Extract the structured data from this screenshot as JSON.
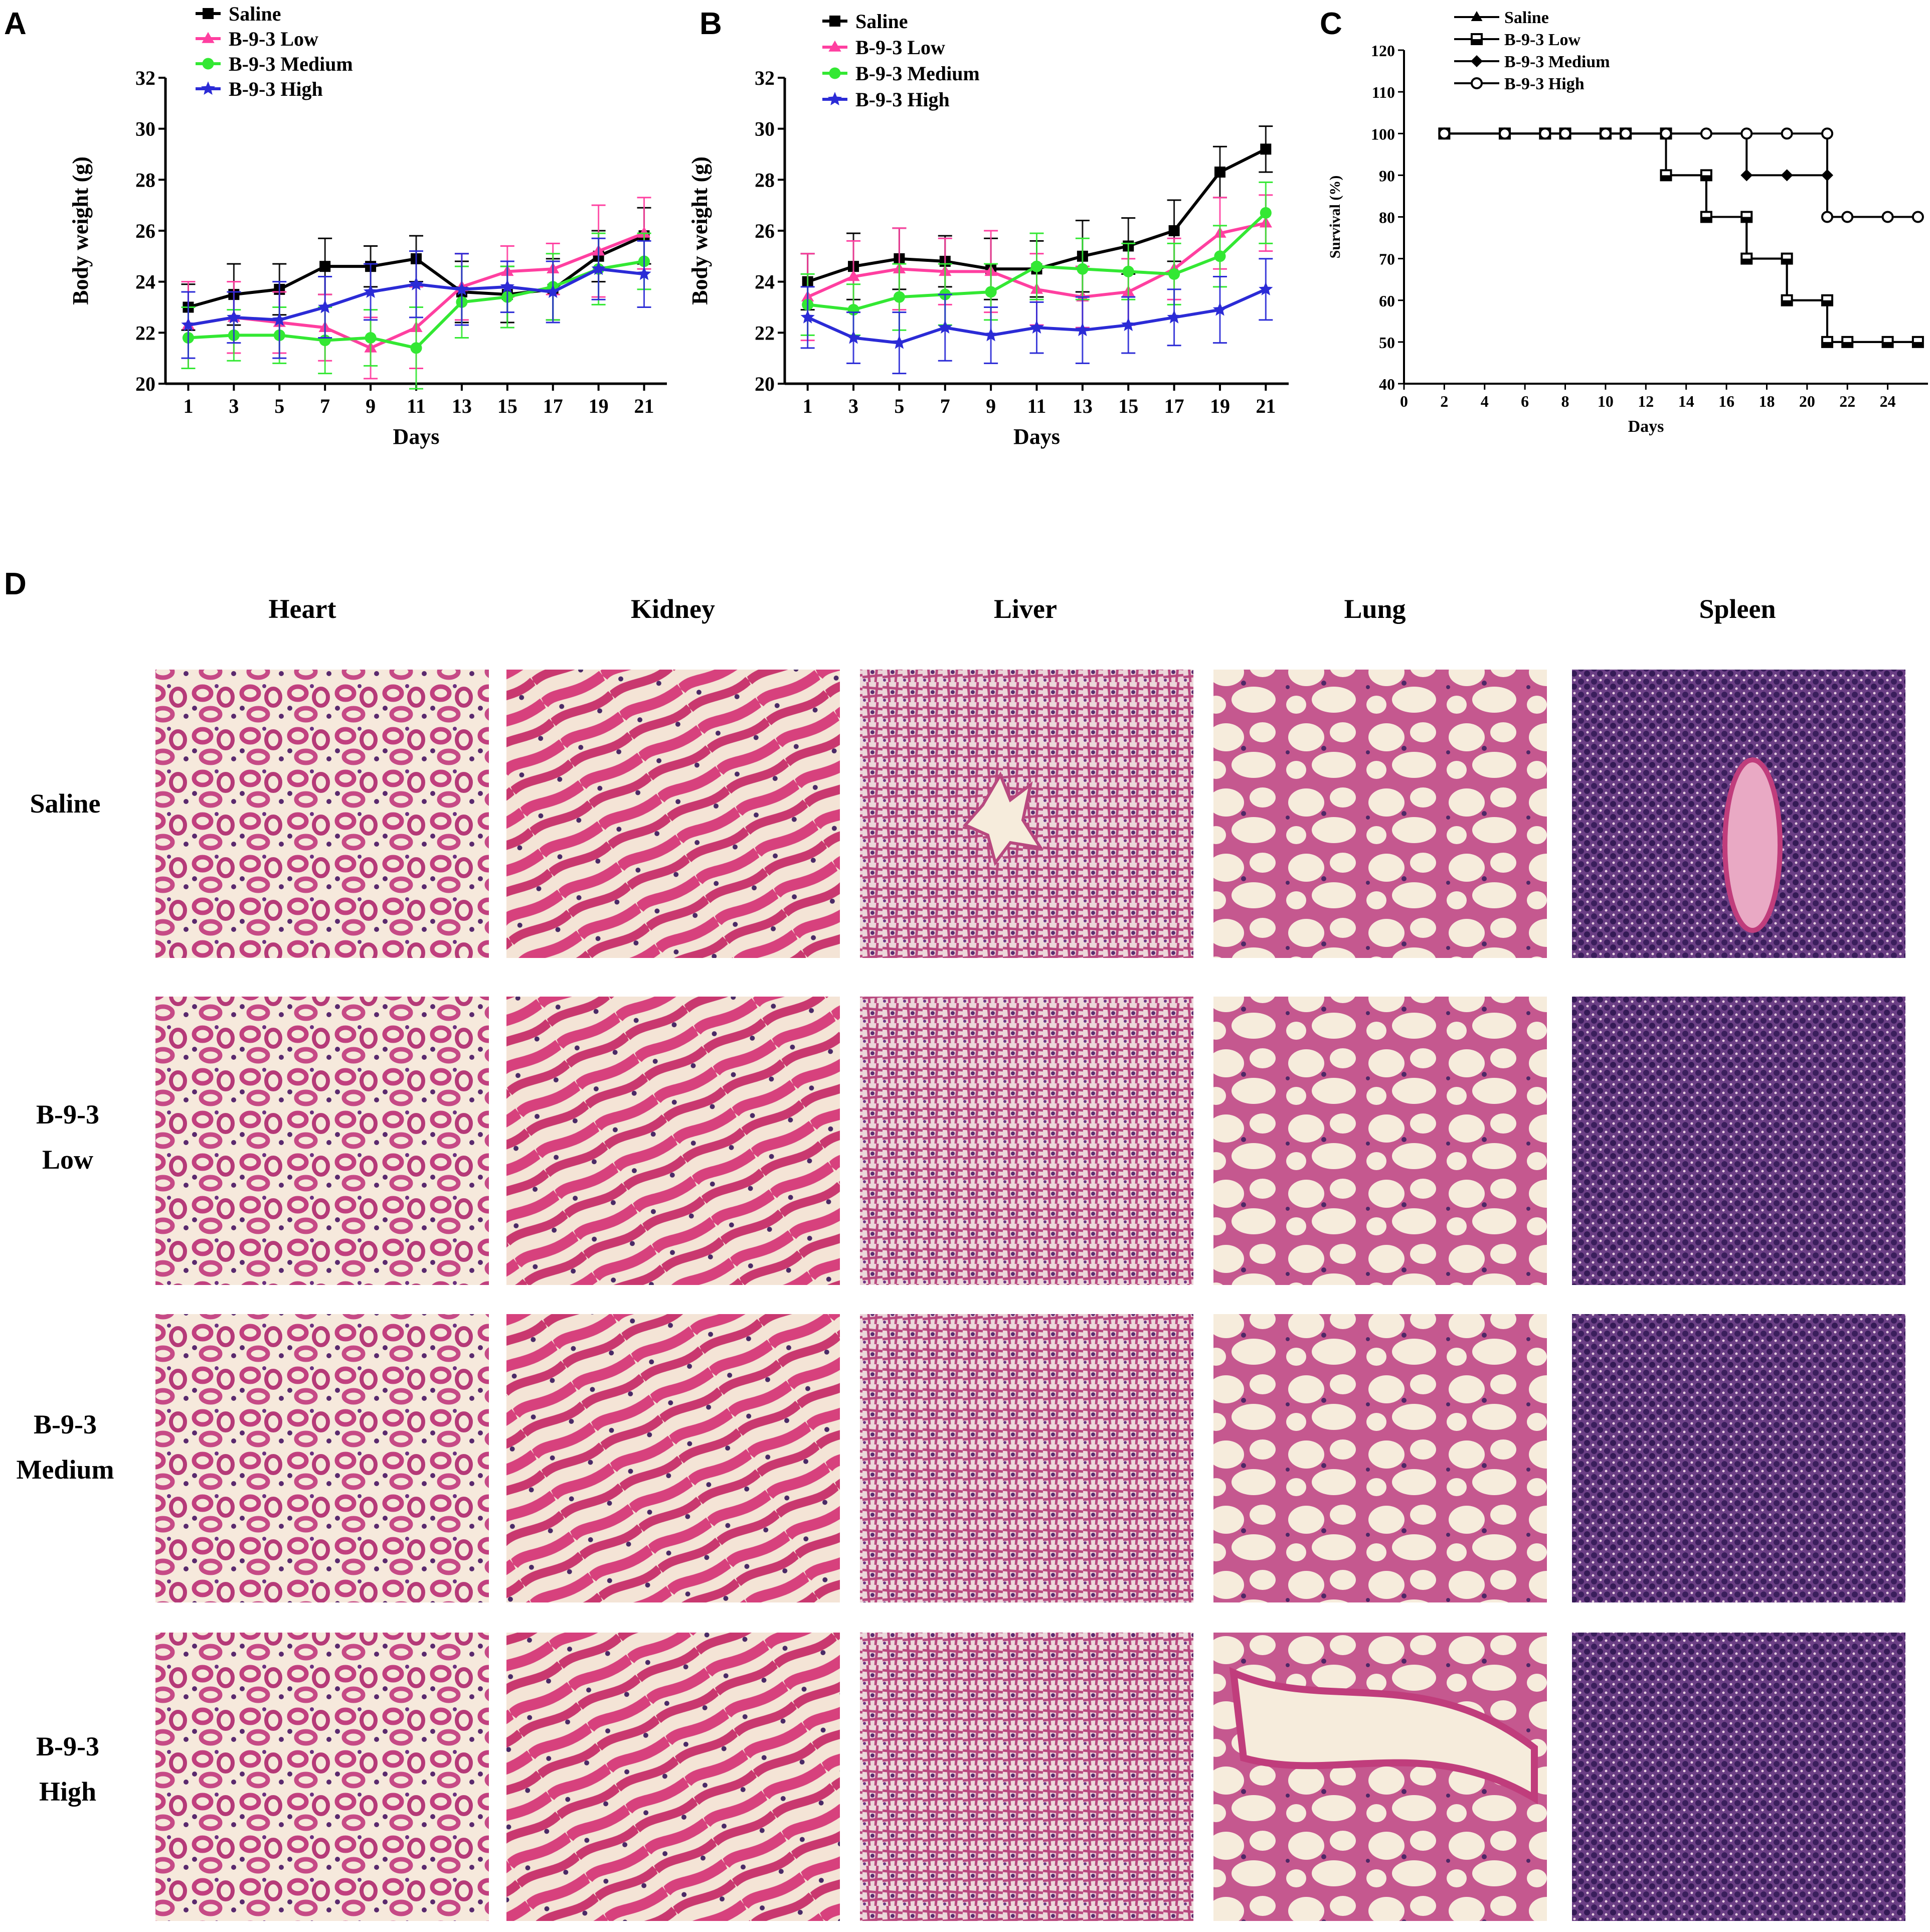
{
  "panels": {
    "A": "A",
    "B": "B",
    "C": "C",
    "D": "D"
  },
  "chart_data": [
    {
      "id": "A",
      "type": "line",
      "xlabel": "Days",
      "ylabel": "Body weight (g)",
      "xlim": [
        0,
        22
      ],
      "ylim": [
        20,
        32
      ],
      "xticks": [
        1,
        3,
        5,
        7,
        9,
        11,
        13,
        15,
        17,
        19,
        21
      ],
      "yticks": [
        20,
        22,
        24,
        26,
        28,
        30,
        32
      ],
      "x": [
        1,
        3,
        5,
        7,
        9,
        11,
        13,
        15,
        17,
        19,
        21
      ],
      "series": [
        {
          "name": "Saline",
          "color": "#000000",
          "marker": "square",
          "values": [
            23.0,
            23.5,
            23.7,
            24.6,
            24.6,
            24.9,
            23.6,
            23.5,
            23.7,
            25.0,
            25.8
          ],
          "errors": [
            0.9,
            1.2,
            1.0,
            1.1,
            0.8,
            0.9,
            1.2,
            1.1,
            1.2,
            1.0,
            1.1
          ]
        },
        {
          "name": "B-9-3 Low",
          "color": "#ff3fa0",
          "marker": "triangle",
          "values": [
            22.3,
            22.6,
            22.4,
            22.2,
            21.4,
            22.2,
            23.8,
            24.4,
            24.5,
            25.2,
            25.9
          ],
          "errors": [
            1.7,
            1.4,
            1.2,
            1.3,
            1.2,
            1.6,
            1.3,
            1.0,
            1.0,
            1.8,
            1.4
          ]
        },
        {
          "name": "B-9-3 Medium",
          "color": "#33e833",
          "marker": "circle",
          "values": [
            21.8,
            21.9,
            21.9,
            21.7,
            21.8,
            21.4,
            23.2,
            23.4,
            23.8,
            24.5,
            24.8
          ],
          "errors": [
            1.2,
            1.0,
            1.1,
            1.3,
            1.1,
            1.6,
            1.4,
            1.2,
            1.3,
            1.4,
            1.1
          ]
        },
        {
          "name": "B-9-3 High",
          "color": "#2b2bd6",
          "marker": "star",
          "values": [
            22.3,
            22.6,
            22.5,
            23.0,
            23.6,
            23.9,
            23.7,
            23.8,
            23.6,
            24.5,
            24.3
          ],
          "errors": [
            1.3,
            1.0,
            1.5,
            1.2,
            1.1,
            1.3,
            1.4,
            1.0,
            1.2,
            1.2,
            1.3
          ]
        }
      ]
    },
    {
      "id": "B",
      "type": "line",
      "xlabel": "Days",
      "ylabel": "Body weight (g)",
      "xlim": [
        0,
        22
      ],
      "ylim": [
        20,
        32
      ],
      "xticks": [
        1,
        3,
        5,
        7,
        9,
        11,
        13,
        15,
        17,
        19,
        21
      ],
      "yticks": [
        20,
        22,
        24,
        26,
        28,
        30,
        32
      ],
      "x": [
        1,
        3,
        5,
        7,
        9,
        11,
        13,
        15,
        17,
        19,
        21
      ],
      "series": [
        {
          "name": "Saline",
          "color": "#000000",
          "marker": "square",
          "values": [
            24.0,
            24.6,
            24.9,
            24.8,
            24.5,
            24.5,
            25.0,
            25.4,
            26.0,
            28.3,
            29.2
          ],
          "errors": [
            1.1,
            1.3,
            1.2,
            1.0,
            1.2,
            1.1,
            1.4,
            1.1,
            1.2,
            1.0,
            0.9
          ]
        },
        {
          "name": "B-9-3 Low",
          "color": "#ff3fa0",
          "marker": "triangle",
          "values": [
            23.4,
            24.2,
            24.5,
            24.4,
            24.4,
            23.7,
            23.4,
            23.6,
            24.5,
            25.9,
            26.3
          ],
          "errors": [
            1.7,
            1.4,
            1.6,
            1.3,
            1.6,
            1.4,
            1.2,
            1.3,
            1.2,
            1.4,
            1.1
          ]
        },
        {
          "name": "B-9-3 Medium",
          "color": "#33e833",
          "marker": "circle",
          "values": [
            23.1,
            22.9,
            23.4,
            23.5,
            23.6,
            24.6,
            24.5,
            24.4,
            24.3,
            25.0,
            26.7
          ],
          "errors": [
            1.2,
            1.0,
            1.3,
            1.2,
            1.1,
            1.3,
            1.2,
            1.1,
            1.2,
            1.2,
            1.2
          ]
        },
        {
          "name": "B-9-3 High",
          "color": "#2b2bd6",
          "marker": "star",
          "values": [
            22.6,
            21.8,
            21.6,
            22.2,
            21.9,
            22.2,
            22.1,
            22.3,
            22.6,
            22.9,
            23.7
          ],
          "errors": [
            1.2,
            1.0,
            1.2,
            1.3,
            1.1,
            1.0,
            1.3,
            1.1,
            1.1,
            1.3,
            1.2
          ]
        }
      ]
    },
    {
      "id": "C",
      "type": "line",
      "step": true,
      "xlabel": "Days",
      "ylabel": "Survival (%)",
      "xlim": [
        0,
        26
      ],
      "ylim": [
        40,
        120
      ],
      "xticks": [
        0,
        2,
        4,
        6,
        8,
        10,
        12,
        14,
        16,
        18,
        20,
        22,
        24
      ],
      "yticks": [
        40,
        50,
        60,
        70,
        80,
        90,
        100,
        110,
        120
      ],
      "series": [
        {
          "name": "Saline",
          "color": "#000000",
          "marker": "triangle",
          "points": [
            [
              2,
              100
            ],
            [
              5,
              100
            ],
            [
              7,
              100
            ],
            [
              8,
              100
            ],
            [
              10,
              100
            ],
            [
              11,
              100
            ],
            [
              13,
              100
            ],
            [
              13,
              90
            ],
            [
              15,
              90
            ],
            [
              15,
              80
            ],
            [
              17,
              80
            ],
            [
              17,
              70
            ],
            [
              19,
              70
            ],
            [
              19,
              60
            ],
            [
              21,
              60
            ],
            [
              21,
              50
            ],
            [
              22,
              50
            ],
            [
              24,
              50
            ],
            [
              25.5,
              50
            ]
          ]
        },
        {
          "name": "B-9-3 Low",
          "color": "#000000",
          "marker": "halfsquare",
          "points": [
            [
              2,
              100
            ],
            [
              5,
              100
            ],
            [
              7,
              100
            ],
            [
              8,
              100
            ],
            [
              10,
              100
            ],
            [
              11,
              100
            ],
            [
              13,
              100
            ],
            [
              13,
              90
            ],
            [
              15,
              90
            ],
            [
              15,
              80
            ],
            [
              17,
              80
            ],
            [
              17,
              70
            ],
            [
              19,
              70
            ],
            [
              19,
              60
            ],
            [
              21,
              60
            ],
            [
              21,
              50
            ],
            [
              22,
              50
            ],
            [
              24,
              50
            ],
            [
              25.5,
              50
            ]
          ]
        },
        {
          "name": "B-9-3 Medium",
          "color": "#000000",
          "marker": "diamond",
          "points": [
            [
              2,
              100
            ],
            [
              5,
              100
            ],
            [
              7,
              100
            ],
            [
              8,
              100
            ],
            [
              10,
              100
            ],
            [
              11,
              100
            ],
            [
              13,
              100
            ],
            [
              15,
              100
            ],
            [
              17,
              100
            ],
            [
              17,
              90
            ],
            [
              19,
              90
            ],
            [
              21,
              90
            ],
            [
              21,
              80
            ],
            [
              22,
              80
            ],
            [
              24,
              80
            ],
            [
              25.5,
              80
            ]
          ]
        },
        {
          "name": "B-9-3 High",
          "color": "#000000",
          "marker": "open-circle",
          "points": [
            [
              2,
              100
            ],
            [
              5,
              100
            ],
            [
              7,
              100
            ],
            [
              8,
              100
            ],
            [
              10,
              100
            ],
            [
              11,
              100
            ],
            [
              13,
              100
            ],
            [
              15,
              100
            ],
            [
              17,
              100
            ],
            [
              19,
              100
            ],
            [
              21,
              100
            ],
            [
              21,
              80
            ],
            [
              22,
              80
            ],
            [
              24,
              80
            ],
            [
              25.5,
              80
            ]
          ]
        }
      ]
    }
  ],
  "histology": {
    "columns": [
      "Heart",
      "Kidney",
      "Liver",
      "Lung",
      "Spleen"
    ],
    "rows": [
      {
        "label_lines": [
          "Saline"
        ]
      },
      {
        "label_lines": [
          "B-9-3",
          "Low"
        ]
      },
      {
        "label_lines": [
          "B-9-3",
          "Medium"
        ]
      },
      {
        "label_lines": [
          "B-9-3",
          "High"
        ]
      }
    ]
  }
}
